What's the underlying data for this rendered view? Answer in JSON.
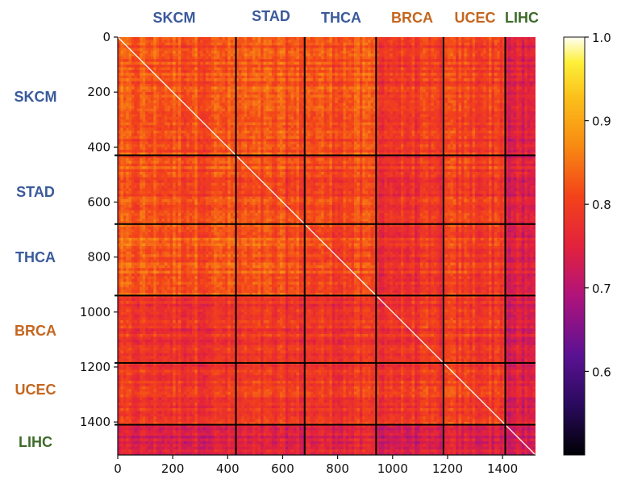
{
  "chart_data": {
    "type": "heatmap",
    "title": "",
    "xlabel": "",
    "ylabel": "",
    "xlim": [
      0,
      1520
    ],
    "ylim": [
      1520,
      0
    ],
    "x_ticks": [
      0,
      200,
      400,
      600,
      800,
      1000,
      1200,
      1400
    ],
    "y_ticks": [
      0,
      200,
      400,
      600,
      800,
      1000,
      1200,
      1400
    ],
    "x_tick_labels": [
      "0",
      "200",
      "400",
      "600",
      "800",
      "1000",
      "1200",
      "1400"
    ],
    "y_tick_labels": [
      "0",
      "200",
      "400",
      "600",
      "800",
      "1000",
      "1200",
      "1400"
    ],
    "colormap": "inferno-like (black → purple → red → orange → yellow → white)",
    "colorbar": {
      "range": [
        0.5,
        1.0
      ],
      "ticks": [
        0.6,
        0.7,
        0.8,
        0.9,
        1.0
      ],
      "tick_labels": [
        "0.6",
        "0.7",
        "0.8",
        "0.9",
        "1.0"
      ],
      "placement": "right"
    },
    "diagonal_value": 1.0,
    "boundaries": [
      430,
      680,
      940,
      1185,
      1410
    ],
    "groups": [
      {
        "name": "SKCM",
        "start": 0,
        "end": 430,
        "color": "#3a5a9a"
      },
      {
        "name": "STAD",
        "start": 430,
        "end": 680,
        "color": "#3a5a9a"
      },
      {
        "name": "THCA",
        "start": 680,
        "end": 940,
        "color": "#3a5a9a"
      },
      {
        "name": "BRCA",
        "start": 940,
        "end": 1185,
        "color": "#c4661f"
      },
      {
        "name": "UCEC",
        "start": 1185,
        "end": 1410,
        "color": "#c4661f"
      },
      {
        "name": "LIHC",
        "start": 1410,
        "end": 1520,
        "color": "#3e6b2a"
      }
    ],
    "block_means": [
      [
        0.82,
        0.82,
        0.82,
        0.79,
        0.8,
        0.74
      ],
      [
        0.82,
        0.81,
        0.81,
        0.78,
        0.8,
        0.74
      ],
      [
        0.83,
        0.82,
        0.81,
        0.78,
        0.8,
        0.74
      ],
      [
        0.78,
        0.78,
        0.78,
        0.78,
        0.79,
        0.73
      ],
      [
        0.79,
        0.79,
        0.79,
        0.79,
        0.8,
        0.74
      ],
      [
        0.74,
        0.74,
        0.75,
        0.73,
        0.74,
        0.72
      ]
    ]
  },
  "colors": {
    "grid_line": "#000000",
    "axis": "#111111",
    "background": "#ffffff"
  }
}
